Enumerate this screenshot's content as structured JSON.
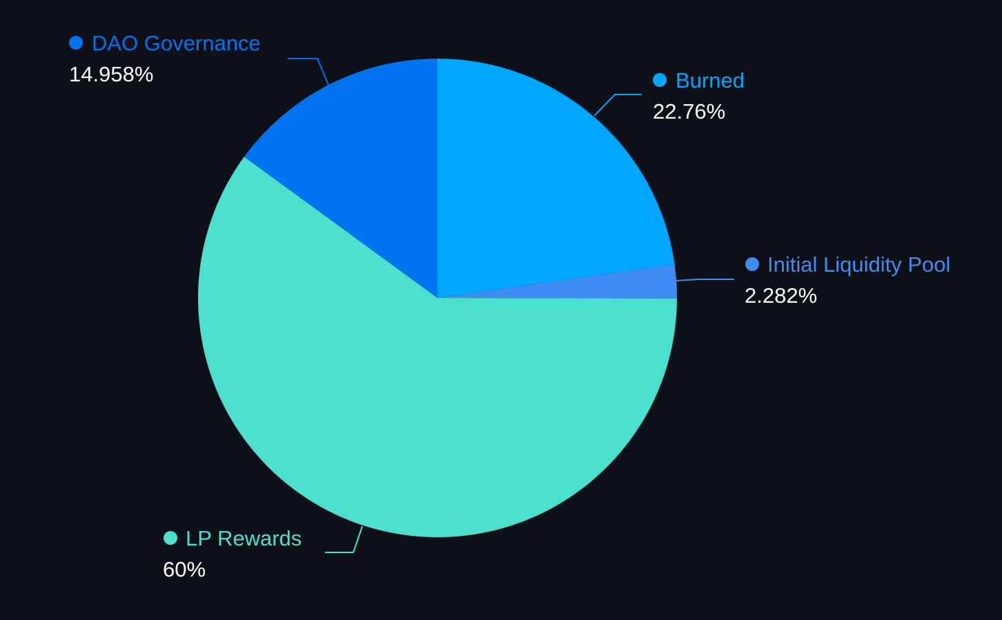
{
  "chart_data": {
    "type": "pie",
    "background": "#0d1117",
    "slices": [
      {
        "name": "Burned",
        "value": 22.76,
        "label": "22.76%",
        "color": "#00a6ff"
      },
      {
        "name": "Initial Liquidity Pool",
        "value": 2.282,
        "label": "2.282%",
        "color": "#3f8cf2"
      },
      {
        "name": "LP Rewards",
        "value": 60,
        "label": "60%",
        "color": "#4be0ce"
      },
      {
        "name": "DAO Governance",
        "value": 14.958,
        "label": "14.958%",
        "color": "#0074f0"
      }
    ],
    "start_angle": "12 o'clock, clockwise"
  }
}
